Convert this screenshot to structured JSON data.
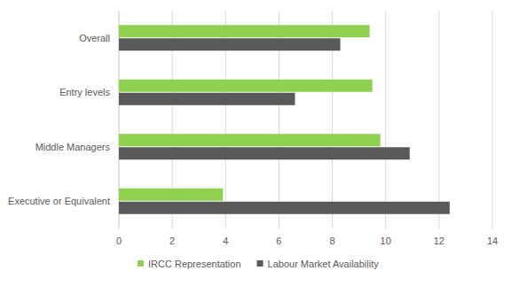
{
  "chart_data": {
    "type": "bar",
    "orientation": "horizontal",
    "categories": [
      "Overall",
      "Entry levels",
      "Middle Managers",
      "Executive or Equivalent"
    ],
    "series": [
      {
        "name": "IRCC Representation",
        "color": "#8ed14f",
        "values": [
          9.4,
          9.5,
          9.8,
          3.9
        ]
      },
      {
        "name": "Labour Market Availability",
        "color": "#595959",
        "values": [
          8.3,
          6.6,
          10.9,
          12.4
        ]
      }
    ],
    "xlim": [
      0,
      14
    ],
    "xticks": [
      0,
      2,
      4,
      6,
      8,
      10,
      12,
      14
    ],
    "grid": true,
    "legend": "bottom"
  }
}
